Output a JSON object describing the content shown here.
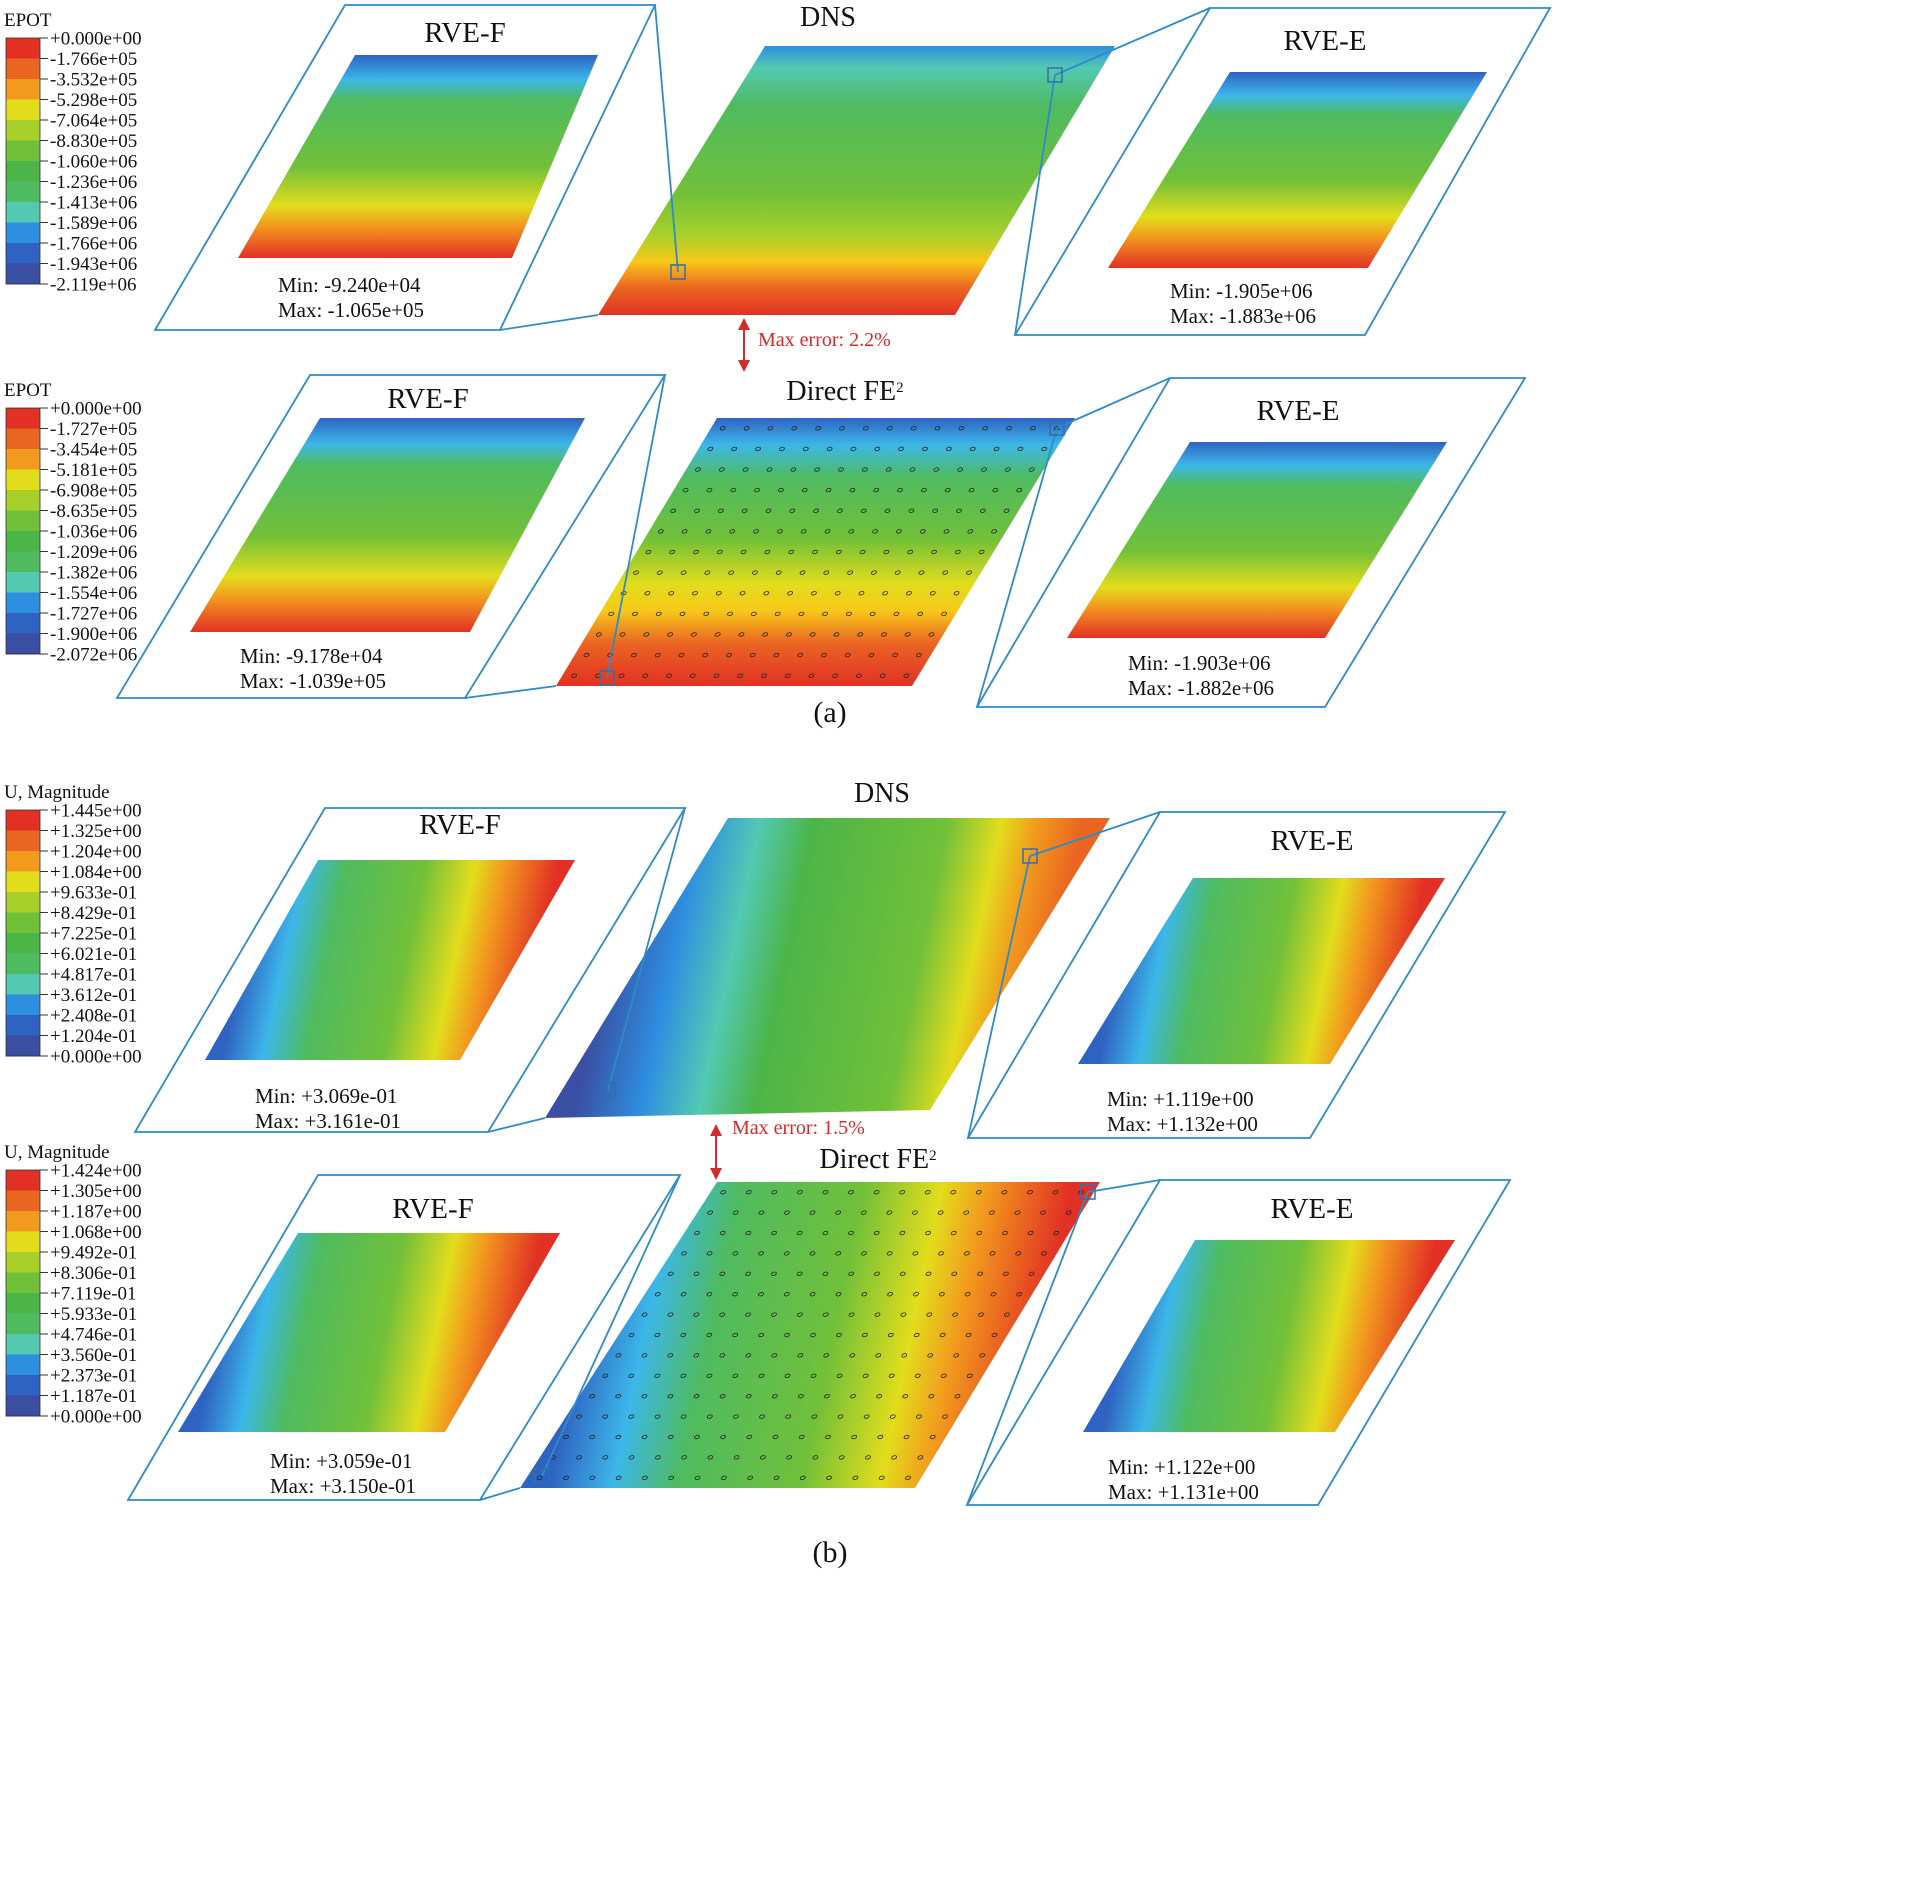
{
  "colormap": [
    "#3a4ea2",
    "#2f63c2",
    "#2e8ee0",
    "#3cb7e9",
    "#53c9b2",
    "#4fbb60",
    "#4cb548",
    "#71c039",
    "#a7d02b",
    "#e2dd1c",
    "#f7c81a",
    "#f29a1d",
    "#ea6522",
    "#e23124"
  ],
  "frame_color": "#2e8bc9",
  "error_color": "#d62a2a",
  "caption_a": "(a)",
  "caption_b": "(b)",
  "panels": [
    {
      "key": "a_dns",
      "legend": {
        "title": "EPOT",
        "labels": [
          "+0.000e+00",
          "-1.766e+05",
          "-3.532e+05",
          "-5.298e+05",
          "-7.064e+05",
          "-8.830e+05",
          "-1.060e+06",
          "-1.236e+06",
          "-1.413e+06",
          "-1.589e+06",
          "-1.766e+06",
          "-1.943e+06",
          "-2.119e+06"
        ]
      },
      "main_title": "DNS",
      "field": "epot",
      "dots": false,
      "rve_f": {
        "title": "RVE-F",
        "min": "Min:  -9.240e+04",
        "max": "Max:  -1.065e+05"
      },
      "rve_e": {
        "title": "RVE-E",
        "min": "Min:  -1.905e+06",
        "max": "Max: -1.883e+06"
      }
    },
    {
      "key": "a_fe2",
      "legend": {
        "title": "EPOT",
        "labels": [
          "+0.000e+00",
          "-1.727e+05",
          "-3.454e+05",
          "-5.181e+05",
          "-6.908e+05",
          "-8.635e+05",
          "-1.036e+06",
          "-1.209e+06",
          "-1.382e+06",
          "-1.554e+06",
          "-1.727e+06",
          "-1.900e+06",
          "-2.072e+06"
        ]
      },
      "main_title": "Direct FE",
      "main_title_sup": "2",
      "field": "epot",
      "dots": true,
      "rve_f": {
        "title": "RVE-F",
        "min": "Min:   -9.178e+04",
        "max": "Max:  -1.039e+05"
      },
      "rve_e": {
        "title": "RVE-E",
        "min": "Min:  -1.903e+06",
        "max": "Max: -1.882e+06"
      }
    },
    {
      "key": "b_dns",
      "legend": {
        "title": "U, Magnitude",
        "labels": [
          "+1.445e+00",
          "+1.325e+00",
          "+1.204e+00",
          "+1.084e+00",
          "+9.633e-01",
          "+8.429e-01",
          "+7.225e-01",
          "+6.021e-01",
          "+4.817e-01",
          "+3.612e-01",
          "+2.408e-01",
          "+1.204e-01",
          "+0.000e+00"
        ]
      },
      "main_title": "DNS",
      "field": "u",
      "dots": false,
      "rve_f": {
        "title": "RVE-F",
        "min": "Min: +3.069e-01",
        "max": "Max: +3.161e-01"
      },
      "rve_e": {
        "title": "RVE-E",
        "min": "Min: +1.119e+00",
        "max": "Max:  +1.132e+00"
      }
    },
    {
      "key": "b_fe2",
      "legend": {
        "title": "U, Magnitude",
        "labels": [
          "+1.424e+00",
          "+1.305e+00",
          "+1.187e+00",
          "+1.068e+00",
          "+9.492e-01",
          "+8.306e-01",
          "+7.119e-01",
          "+5.933e-01",
          "+4.746e-01",
          "+3.560e-01",
          "+2.373e-01",
          "+1.187e-01",
          "+0.000e+00"
        ]
      },
      "main_title": "Direct FE",
      "main_title_sup": "2",
      "field": "u",
      "dots": true,
      "rve_f": {
        "title": "RVE-F",
        "min": "Min: +3.059e-01",
        "max": "Max: +3.150e-01"
      },
      "rve_e": {
        "title": "RVE-E",
        "min": "Min: +1.122e+00",
        "max": "Max: +1.131e+00"
      }
    }
  ],
  "errors": [
    {
      "label": "Max error: 2.2%"
    },
    {
      "label": "Max error: 1.5%"
    }
  ]
}
